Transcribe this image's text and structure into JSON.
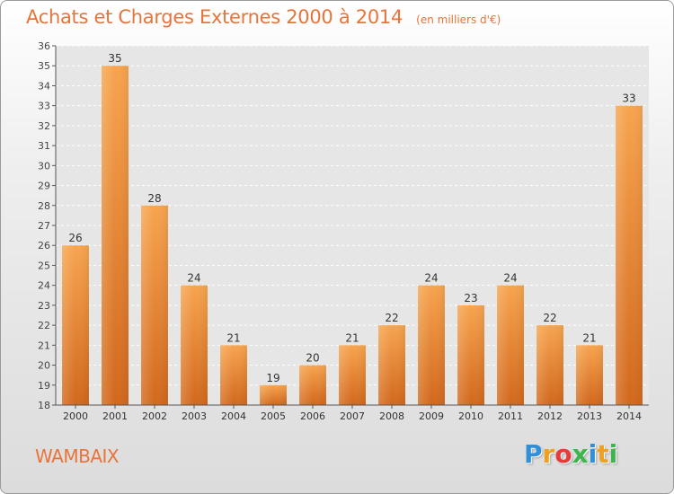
{
  "chart_data": {
    "type": "bar",
    "title": "Achats et Charges Externes 2000 à 2014",
    "unit_note": "(en milliers d'€)",
    "categories": [
      "2000",
      "2001",
      "2002",
      "2003",
      "2004",
      "2005",
      "2006",
      "2007",
      "2008",
      "2009",
      "2010",
      "2011",
      "2012",
      "2013",
      "2014"
    ],
    "values": [
      26,
      35,
      28,
      24,
      21,
      19,
      20,
      21,
      22,
      24,
      23,
      24,
      22,
      21,
      33
    ],
    "ylim": [
      18,
      36
    ],
    "yticks": [
      18,
      19,
      20,
      21,
      22,
      23,
      24,
      25,
      26,
      27,
      28,
      29,
      30,
      31,
      32,
      33,
      34,
      35,
      36
    ],
    "grid": true,
    "xlabel": "",
    "ylabel": "",
    "bar_color": "#f08a2c"
  },
  "footer": {
    "commune": "WAMBAIX",
    "brand_letters": [
      "P",
      "r",
      "o",
      "x",
      "i",
      "t",
      "i"
    ],
    "brand_colors": [
      "#2f8fd8",
      "#f0a020",
      "#e83a3a",
      "#3cb54a",
      "#2f8fd8",
      "#f0a020",
      "#3cb54a"
    ]
  },
  "colors": {
    "accent": "#e8743b"
  }
}
